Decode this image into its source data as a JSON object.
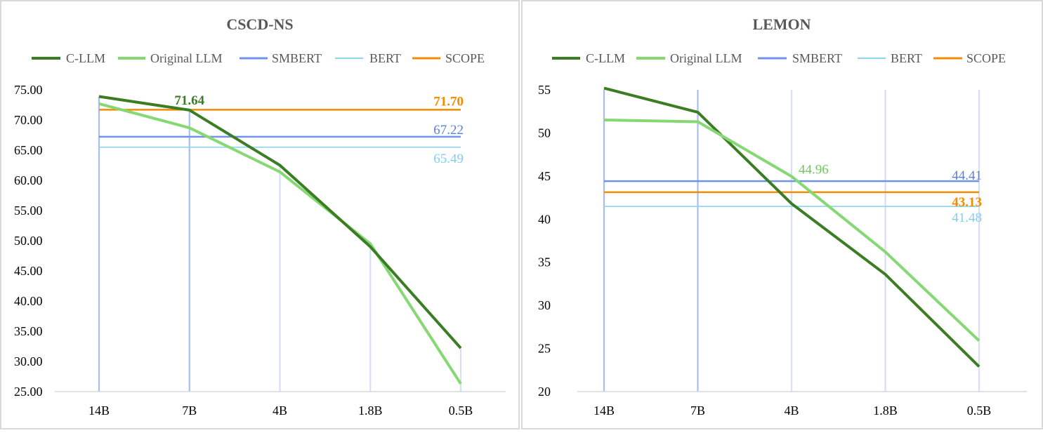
{
  "chart_data": [
    {
      "type": "line",
      "title": "CSCD-NS",
      "categories": [
        "14B",
        "7B",
        "4B",
        "1.8B",
        "0.5B"
      ],
      "ylim": [
        25,
        75
      ],
      "yticks": [
        "25.00",
        "30.00",
        "35.00",
        "40.00",
        "45.00",
        "50.00",
        "55.00",
        "60.00",
        "65.00",
        "70.00",
        "75.00"
      ],
      "ytick_values": [
        25,
        30,
        35,
        40,
        45,
        50,
        55,
        60,
        65,
        70,
        75
      ],
      "grid": "vertical",
      "legend_position": "top",
      "series": [
        {
          "name": "C-LLM",
          "kind": "line",
          "color": "#3a7d23",
          "width": 4,
          "values": [
            73.9,
            71.64,
            62.5,
            49.0,
            32.2
          ]
        },
        {
          "name": "Original LLM",
          "kind": "line",
          "color": "#86d873",
          "width": 4,
          "values": [
            72.7,
            68.7,
            61.4,
            49.5,
            26.3
          ]
        },
        {
          "name": "SMBERT",
          "kind": "hline",
          "color": "#6f93e8",
          "width": 2.5,
          "value": 67.22
        },
        {
          "name": "BERT",
          "kind": "hline",
          "color": "#92d7f2",
          "width": 1.8,
          "value": 65.49
        },
        {
          "name": "SCOPE",
          "kind": "hline",
          "color": "#f28c00",
          "width": 2.5,
          "value": 71.7
        }
      ],
      "annotations": [
        {
          "text": "71.64",
          "series": "C-LLM",
          "index": 1,
          "value": 71.64,
          "color": "#3a7d23",
          "bold": true
        },
        {
          "text": "71.70",
          "series": "SCOPE",
          "index": 4,
          "value": 71.7,
          "color": "#f28c00",
          "bold": true
        },
        {
          "text": "67.22",
          "series": "SMBERT",
          "index": 4,
          "value": 67.22,
          "color": "#5b7fdc",
          "bold": false
        },
        {
          "text": "65.49",
          "series": "BERT",
          "index": 4,
          "value": 65.49,
          "color": "#86cdee",
          "bold": false
        }
      ]
    },
    {
      "type": "line",
      "title": "LEMON",
      "categories": [
        "14B",
        "7B",
        "4B",
        "1.8B",
        "0.5B"
      ],
      "ylim": [
        20,
        55
      ],
      "yticks": [
        "20",
        "25",
        "30",
        "35",
        "40",
        "45",
        "50",
        "55"
      ],
      "ytick_values": [
        20,
        25,
        30,
        35,
        40,
        45,
        50,
        55
      ],
      "grid": "vertical",
      "legend_position": "top",
      "series": [
        {
          "name": "C-LLM",
          "kind": "line",
          "color": "#3a7d23",
          "width": 4,
          "values": [
            55.2,
            52.4,
            41.8,
            33.6,
            22.9
          ]
        },
        {
          "name": "Original LLM",
          "kind": "line",
          "color": "#86d873",
          "width": 4,
          "values": [
            51.5,
            51.3,
            44.96,
            36.2,
            25.9
          ]
        },
        {
          "name": "SMBERT",
          "kind": "hline",
          "color": "#6f93e8",
          "width": 2.5,
          "value": 44.41
        },
        {
          "name": "BERT",
          "kind": "hline",
          "color": "#92d7f2",
          "width": 1.8,
          "value": 41.48
        },
        {
          "name": "SCOPE",
          "kind": "hline",
          "color": "#f28c00",
          "width": 2.5,
          "value": 43.13
        }
      ],
      "annotations": [
        {
          "text": "44.96",
          "series": "Original LLM",
          "index": 2,
          "value": 44.96,
          "color": "#6fc95c",
          "bold": false
        },
        {
          "text": "44.41",
          "series": "SMBERT",
          "index": 4,
          "value": 44.41,
          "color": "#5b7fdc",
          "bold": false
        },
        {
          "text": "43.13",
          "series": "SCOPE",
          "index": 4,
          "value": 43.13,
          "color": "#f28c00",
          "bold": true
        },
        {
          "text": "41.48",
          "series": "BERT",
          "index": 4,
          "value": 41.48,
          "color": "#86cdee",
          "bold": false
        }
      ]
    }
  ]
}
